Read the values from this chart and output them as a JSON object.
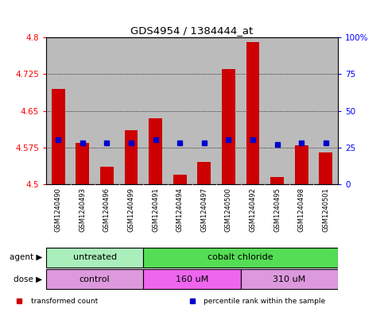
{
  "title": "GDS4954 / 1384444_at",
  "samples": [
    "GSM1240490",
    "GSM1240493",
    "GSM1240496",
    "GSM1240499",
    "GSM1240491",
    "GSM1240494",
    "GSM1240497",
    "GSM1240500",
    "GSM1240492",
    "GSM1240495",
    "GSM1240498",
    "GSM1240501"
  ],
  "bar_values": [
    4.695,
    4.585,
    4.535,
    4.61,
    4.635,
    4.52,
    4.545,
    4.735,
    4.79,
    4.515,
    4.58,
    4.565
  ],
  "dot_values": [
    30,
    28,
    28,
    28,
    30,
    28,
    28,
    30,
    30,
    27,
    28,
    28
  ],
  "ymin": 4.5,
  "ymax": 4.8,
  "y_ticks": [
    4.5,
    4.575,
    4.65,
    4.725,
    4.8
  ],
  "y_tick_labels": [
    "4.5",
    "4.575",
    "4.65",
    "4.725",
    "4.8"
  ],
  "right_yticks": [
    0,
    25,
    50,
    75,
    100
  ],
  "right_yticklabels": [
    "0",
    "25",
    "50",
    "75",
    "100%"
  ],
  "bar_color": "#cc0000",
  "dot_color": "#0000cc",
  "agent_groups": [
    {
      "label": "untreated",
      "start": 0,
      "end": 3,
      "color": "#aaeebb"
    },
    {
      "label": "cobalt chloride",
      "start": 4,
      "end": 11,
      "color": "#55dd55"
    }
  ],
  "dose_groups": [
    {
      "label": "control",
      "start": 0,
      "end": 3,
      "color": "#dd99dd"
    },
    {
      "label": "160 uM",
      "start": 4,
      "end": 7,
      "color": "#ee66ee"
    },
    {
      "label": "310 uM",
      "start": 8,
      "end": 11,
      "color": "#dd99dd"
    }
  ],
  "legend_items": [
    {
      "label": "transformed count",
      "color": "#cc0000",
      "marker": "s"
    },
    {
      "label": "percentile rank within the sample",
      "color": "#0000cc",
      "marker": "s"
    }
  ],
  "agent_label": "agent",
  "dose_label": "dose",
  "bg_color": "#ffffff",
  "bar_width": 0.55,
  "sample_bg_color": "#bbbbbb"
}
